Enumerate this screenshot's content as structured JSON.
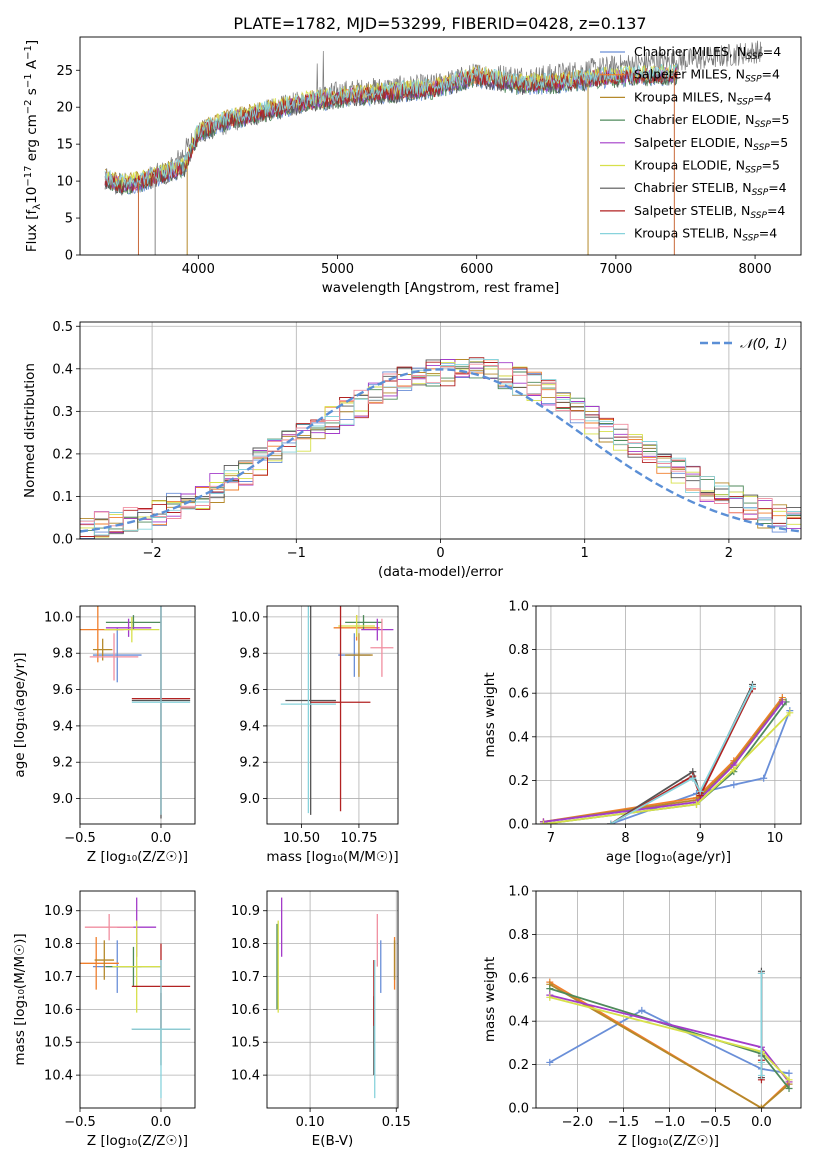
{
  "figure_title": "PLATE=1782, MJD=53299, FIBERID=0428, z=0.137",
  "colors": {
    "Chabrier MILES": "#6a8fd8",
    "Salpeter MILES": "#f07f2c",
    "Kroupa MILES": "#b5892b",
    "Chabrier ELODIE": "#4f8a5b",
    "Salpeter ELODIE": "#a33cc9",
    "Kroupa ELODIE": "#d7e04a",
    "Chabrier STELIB": "#555555",
    "Salpeter STELIB": "#b22222",
    "Kroupa STELIB": "#88d3dc",
    "pink": "#f08fa0",
    "gauss": "#5b8fd6"
  },
  "chart_data": [
    {
      "id": "spectrum",
      "type": "line",
      "title": "PLATE=1782, MJD=53299, FIBERID=0428, z=0.137",
      "xlabel": "wavelength [Angstrom, rest frame]",
      "ylabel_parts": [
        "Flux [f",
        "λ",
        "10",
        "−17",
        " erg cm",
        "−2",
        " s",
        "−1",
        " A",
        "−1",
        "]"
      ],
      "xlim": [
        3150,
        8330
      ],
      "ylim": [
        0,
        29.5
      ],
      "xticks": [
        4000,
        5000,
        6000,
        7000,
        8000
      ],
      "yticks": [
        0,
        5,
        10,
        15,
        20,
        25
      ],
      "legend_position": "top-right",
      "legend": [
        {
          "name": "Chabrier MILES",
          "sub_base": "N",
          "sub": "SSP",
          "value": "=4"
        },
        {
          "name": "Salpeter MILES",
          "sub_base": "N",
          "sub": "SSP",
          "value": "=4"
        },
        {
          "name": "Kroupa MILES",
          "sub_base": "N",
          "sub": "SSP",
          "value": "=4"
        },
        {
          "name": "Chabrier ELODIE",
          "sub_base": "N",
          "sub": "SSP",
          "value": "=5"
        },
        {
          "name": "Salpeter ELODIE",
          "sub_base": "N",
          "sub": "SSP",
          "value": "=5"
        },
        {
          "name": "Kroupa ELODIE",
          "sub_base": "N",
          "sub": "SSP",
          "value": "=5"
        },
        {
          "name": "Chabrier STELIB",
          "sub_base": "N",
          "sub": "SSP",
          "value": "=4"
        },
        {
          "name": "Salpeter STELIB",
          "sub_base": "N",
          "sub": "SSP",
          "value": "=4"
        },
        {
          "name": "Kroupa STELIB",
          "sub_base": "N",
          "sub": "SSP",
          "value": "=4"
        }
      ],
      "continuum": [
        [
          3330,
          10.2
        ],
        [
          3450,
          9.5
        ],
        [
          3600,
          10.0
        ],
        [
          3750,
          11.0
        ],
        [
          3900,
          12.0
        ],
        [
          4000,
          16.5
        ],
        [
          4200,
          18.2
        ],
        [
          4500,
          19.5
        ],
        [
          4800,
          20.8
        ],
        [
          5100,
          21.5
        ],
        [
          5400,
          22.0
        ],
        [
          5700,
          22.5
        ],
        [
          6000,
          24.2
        ],
        [
          6300,
          23.0
        ],
        [
          6600,
          23.3
        ],
        [
          6900,
          24.0
        ],
        [
          7200,
          24.3
        ],
        [
          7450,
          24.4
        ]
      ],
      "data_continuum": [
        [
          3330,
          10.2
        ],
        [
          3500,
          9.5
        ],
        [
          3800,
          11.5
        ],
        [
          4000,
          16.5
        ],
        [
          4300,
          18.5
        ],
        [
          4700,
          20.5
        ],
        [
          5000,
          22.0
        ],
        [
          5300,
          22.5
        ],
        [
          5700,
          23.0
        ],
        [
          6000,
          24.5
        ],
        [
          6400,
          24.0
        ],
        [
          6800,
          25.0
        ],
        [
          7200,
          26.0
        ],
        [
          7600,
          26.5
        ],
        [
          8000,
          27.5
        ],
        [
          8050,
          27.5
        ]
      ],
      "model_edges": [
        [
          3330,
          7440
        ],
        [
          3330,
          7440
        ],
        [
          3330,
          6800
        ],
        [
          3330,
          7440
        ],
        [
          3330,
          7440
        ],
        [
          3330,
          7440
        ],
        [
          3330,
          7440
        ],
        [
          3330,
          7440
        ],
        [
          3330,
          7440
        ]
      ],
      "drops": [
        [
          3570,
          0
        ],
        [
          3690,
          0
        ],
        [
          3920,
          0
        ],
        [
          6800,
          0
        ],
        [
          7420,
          0
        ]
      ]
    },
    {
      "id": "residuals",
      "type": "histogram",
      "xlabel": "(data-model)/error",
      "ylabel": "Normed distribution",
      "xlim": [
        -2.5,
        2.5
      ],
      "ylim": [
        0,
        0.51
      ],
      "xticks": [
        -2,
        -1,
        0,
        1,
        2
      ],
      "yticks": [
        0.0,
        0.1,
        0.2,
        0.3,
        0.4,
        0.5
      ],
      "legend": "𝒩(0, 1)",
      "legend_position": "top-right",
      "bin_width": 0.1,
      "series_base": [
        0.02,
        0.03,
        0.04,
        0.04,
        0.05,
        0.06,
        0.08,
        0.09,
        0.1,
        0.12,
        0.14,
        0.16,
        0.18,
        0.2,
        0.22,
        0.24,
        0.26,
        0.28,
        0.3,
        0.32,
        0.34,
        0.36,
        0.37,
        0.38,
        0.39,
        0.39,
        0.4,
        0.4,
        0.39,
        0.38,
        0.37,
        0.36,
        0.34,
        0.32,
        0.3,
        0.28,
        0.26,
        0.24,
        0.22,
        0.2,
        0.18,
        0.16,
        0.14,
        0.12,
        0.1,
        0.09,
        0.08,
        0.06,
        0.05,
        0.04
      ]
    },
    {
      "id": "age-vs-Z",
      "type": "errorbar",
      "xlabel": "Z [log₁₀(Z/Z☉)]",
      "ylabel": "age  [log₁₀(age/yr)]",
      "xlim": [
        -0.5,
        0.21
      ],
      "ylim": [
        8.86,
        10.06
      ],
      "xticks": [
        -0.5,
        0.0
      ],
      "yticks": [
        9.0,
        9.2,
        9.4,
        9.6,
        9.8,
        10.0
      ],
      "points": [
        {
          "s": "Chabrier MILES",
          "x": -0.27,
          "xerr": 0.15,
          "y": 9.79,
          "yerr": 0.15
        },
        {
          "s": "Salpeter MILES",
          "x": -0.39,
          "xerr": 0.16,
          "y": 9.93,
          "yerr": 0.18
        },
        {
          "s": "Kroupa MILES",
          "x": -0.36,
          "xerr": 0.06,
          "y": 9.82,
          "yerr": 0.06
        },
        {
          "s": "Chabrier ELODIE",
          "x": -0.17,
          "xerr": 0.17,
          "y": 9.97,
          "yerr": 0.04
        },
        {
          "s": "Salpeter ELODIE",
          "x": -0.2,
          "xerr": 0.14,
          "y": 9.94,
          "yerr": 0.05
        },
        {
          "s": "Kroupa ELODIE",
          "x": -0.18,
          "xerr": 0.17,
          "y": 9.93,
          "yerr": 0.07
        },
        {
          "s": "Chabrier STELIB",
          "x": 0.0,
          "xerr": 0.18,
          "y": 9.54,
          "yerr": 0.65
        },
        {
          "s": "Salpeter STELIB",
          "x": 0.0,
          "xerr": 0.18,
          "y": 9.55,
          "yerr": 0.64
        },
        {
          "s": "Kroupa STELIB",
          "x": 0.0,
          "xerr": 0.18,
          "y": 9.53,
          "yerr": 0.62
        },
        {
          "s": "pink",
          "x": -0.29,
          "xerr": 0.15,
          "y": 9.78,
          "yerr": 0.13
        }
      ]
    },
    {
      "id": "age-vs-mass",
      "type": "errorbar",
      "xlabel": "mass [log₁₀(M/M☉)]",
      "ylabel": "",
      "xlim": [
        10.35,
        10.92
      ],
      "ylim": [
        8.86,
        10.06
      ],
      "xticks": [
        10.5,
        10.75
      ],
      "yticks": [
        9.0,
        9.2,
        9.4,
        9.6,
        9.8,
        10.0
      ],
      "points": [
        {
          "s": "Chabrier MILES",
          "x": 10.73,
          "xerr": 0.07,
          "y": 9.79,
          "yerr": 0.12
        },
        {
          "s": "Salpeter MILES",
          "x": 10.74,
          "xerr": 0.1,
          "y": 9.94,
          "yerr": 0.07
        },
        {
          "s": "Kroupa MILES",
          "x": 10.75,
          "xerr": 0.06,
          "y": 9.79,
          "yerr": 0.12
        },
        {
          "s": "Chabrier ELODIE",
          "x": 10.77,
          "xerr": 0.08,
          "y": 9.97,
          "yerr": 0.04
        },
        {
          "s": "Salpeter ELODIE",
          "x": 10.83,
          "xerr": 0.07,
          "y": 9.93,
          "yerr": 0.06
        },
        {
          "s": "Kroupa ELODIE",
          "x": 10.74,
          "xerr": 0.08,
          "y": 9.95,
          "yerr": 0.06
        },
        {
          "s": "Chabrier STELIB",
          "x": 10.54,
          "xerr": 0.11,
          "y": 9.54,
          "yerr": 0.63
        },
        {
          "s": "Salpeter STELIB",
          "x": 10.67,
          "xerr": 0.13,
          "y": 9.53,
          "yerr": 0.6
        },
        {
          "s": "Kroupa STELIB",
          "x": 10.53,
          "xerr": 0.12,
          "y": 9.52,
          "yerr": 0.6
        },
        {
          "s": "pink",
          "x": 10.85,
          "xerr": 0.05,
          "y": 9.83,
          "yerr": 0.16
        }
      ]
    },
    {
      "id": "weight-vs-age",
      "type": "line",
      "xlabel": "age  [log₁₀(age/yr)]",
      "ylabel": "mass weight",
      "xlim": [
        6.8,
        10.35
      ],
      "ylim": [
        0,
        1
      ],
      "xticks": [
        7,
        8,
        9,
        10
      ],
      "yticks": [
        0.0,
        0.2,
        0.4,
        0.6,
        0.8,
        1.0
      ],
      "series": [
        {
          "s": "Chabrier MILES",
          "x": [
            7.8,
            8.95,
            9.45,
            9.85,
            10.2
          ],
          "y": [
            0.0,
            0.14,
            0.18,
            0.21,
            0.52
          ]
        },
        {
          "s": "Salpeter MILES",
          "x": [
            6.9,
            8.95,
            9.45,
            10.1
          ],
          "y": [
            0.01,
            0.12,
            0.29,
            0.58
          ]
        },
        {
          "s": "Kroupa MILES",
          "x": [
            6.9,
            8.95,
            9.45,
            10.1
          ],
          "y": [
            0.01,
            0.11,
            0.28,
            0.57
          ]
        },
        {
          "s": "Chabrier ELODIE",
          "x": [
            6.9,
            8.95,
            9.45,
            10.15
          ],
          "y": [
            0.0,
            0.09,
            0.24,
            0.56
          ]
        },
        {
          "s": "Salpeter ELODIE",
          "x": [
            6.9,
            8.95,
            9.45,
            10.1
          ],
          "y": [
            0.01,
            0.1,
            0.27,
            0.56
          ]
        },
        {
          "s": "Kroupa ELODIE",
          "x": [
            6.9,
            8.95,
            9.45,
            10.2
          ],
          "y": [
            0.0,
            0.09,
            0.25,
            0.51
          ]
        },
        {
          "s": "Chabrier STELIB",
          "x": [
            7.8,
            8.9,
            9.0,
            9.7
          ],
          "y": [
            0.0,
            0.24,
            0.14,
            0.64
          ]
        },
        {
          "s": "Salpeter STELIB",
          "x": [
            7.8,
            8.9,
            9.0,
            9.7
          ],
          "y": [
            0.0,
            0.22,
            0.13,
            0.62
          ]
        },
        {
          "s": "Kroupa STELIB",
          "x": [
            7.8,
            8.9,
            9.0,
            9.7
          ],
          "y": [
            0.0,
            0.21,
            0.15,
            0.63
          ]
        }
      ]
    },
    {
      "id": "mass-vs-Z",
      "type": "errorbar",
      "xlabel": "Z [log₁₀(Z/Z☉)]",
      "ylabel": "mass [log₁₀(M/M☉)]",
      "xlim": [
        -0.5,
        0.21
      ],
      "ylim": [
        10.3,
        10.96
      ],
      "xticks": [
        -0.5,
        0.0
      ],
      "yticks": [
        10.4,
        10.5,
        10.6,
        10.7,
        10.8,
        10.9
      ],
      "points": [
        {
          "s": "Chabrier MILES",
          "x": -0.27,
          "xerr": 0.15,
          "y": 10.73,
          "yerr": 0.08
        },
        {
          "s": "Salpeter MILES",
          "x": -0.4,
          "xerr": 0.14,
          "y": 10.74,
          "yerr": 0.08
        },
        {
          "s": "Kroupa MILES",
          "x": -0.35,
          "xerr": 0.06,
          "y": 10.75,
          "yerr": 0.06
        },
        {
          "s": "Chabrier ELODIE",
          "x": -0.17,
          "xerr": 0.17,
          "y": 10.73,
          "yerr": 0.06
        },
        {
          "s": "Salpeter ELODIE",
          "x": -0.15,
          "xerr": 0.12,
          "y": 10.85,
          "yerr": 0.09
        },
        {
          "s": "Kroupa ELODIE",
          "x": -0.15,
          "xerr": 0.15,
          "y": 10.73,
          "yerr": 0.14
        },
        {
          "s": "Chabrier STELIB",
          "x": 0.0,
          "xerr": 0.18,
          "y": 10.54,
          "yerr": 0.11
        },
        {
          "s": "Salpeter STELIB",
          "x": 0.0,
          "xerr": 0.18,
          "y": 10.67,
          "yerr": 0.13
        },
        {
          "s": "Kroupa STELIB",
          "x": 0.0,
          "xerr": 0.18,
          "y": 10.54,
          "yerr": 0.21
        },
        {
          "s": "pink",
          "x": -0.32,
          "xerr": 0.15,
          "y": 10.85,
          "yerr": 0.04
        }
      ]
    },
    {
      "id": "mass-vs-EBV",
      "type": "errorbar",
      "xlabel": "E(B-V)",
      "ylabel": "",
      "xlim": [
        0.075,
        0.151
      ],
      "ylim": [
        10.3,
        10.96
      ],
      "xticks": [
        0.1,
        0.15
      ],
      "yticks": [
        10.4,
        10.5,
        10.6,
        10.7,
        10.8,
        10.9
      ],
      "points": [
        {
          "s": "Chabrier MILES",
          "x": 0.141,
          "xerr": 0,
          "y": 10.73,
          "yerr": 0.08
        },
        {
          "s": "Salpeter MILES",
          "x": 0.149,
          "xerr": 0,
          "y": 10.74,
          "yerr": 0.08
        },
        {
          "s": "Kroupa MILES",
          "x": 0.149,
          "xerr": 0,
          "y": 10.75,
          "yerr": 0.06
        },
        {
          "s": "Chabrier ELODIE",
          "x": 0.0808,
          "xerr": 0,
          "y": 10.73,
          "yerr": 0.13
        },
        {
          "s": "Salpeter ELODIE",
          "x": 0.0835,
          "xerr": 0,
          "y": 10.85,
          "yerr": 0.09
        },
        {
          "s": "Kroupa ELODIE",
          "x": 0.0815,
          "xerr": 0,
          "y": 10.73,
          "yerr": 0.14
        },
        {
          "s": "Chabrier STELIB",
          "x": 0.137,
          "xerr": 0,
          "y": 10.52,
          "yerr": 0.12
        },
        {
          "s": "Salpeter STELIB",
          "x": 0.137,
          "xerr": 0,
          "y": 10.65,
          "yerr": 0.1
        },
        {
          "s": "Kroupa STELIB",
          "x": 0.1375,
          "xerr": 0,
          "y": 10.54,
          "yerr": 0.21
        },
        {
          "s": "pink",
          "x": 0.139,
          "xerr": 0,
          "y": 10.81,
          "yerr": 0.08
        }
      ]
    },
    {
      "id": "weight-vs-Z",
      "type": "line",
      "xlabel": "Z [log₁₀(Z/Z☉)]",
      "ylabel": "mass weight",
      "xlim": [
        -2.45,
        0.43
      ],
      "ylim": [
        0,
        1
      ],
      "xticks": [
        -2.0,
        -1.5,
        -1.0,
        -0.5,
        0.0
      ],
      "yticks": [
        0.0,
        0.2,
        0.4,
        0.6,
        0.8,
        1.0
      ],
      "series": [
        {
          "s": "Chabrier MILES",
          "x": [
            -2.3,
            -1.3,
            0.0,
            0.3
          ],
          "y": [
            0.21,
            0.45,
            0.18,
            0.16
          ]
        },
        {
          "s": "Salpeter MILES",
          "x": [
            -2.3,
            0.0,
            0.3
          ],
          "y": [
            0.58,
            0.0,
            0.12
          ]
        },
        {
          "s": "Kroupa MILES",
          "x": [
            -2.3,
            0.0,
            0.3
          ],
          "y": [
            0.57,
            0.0,
            0.11
          ]
        },
        {
          "s": "Chabrier ELODIE",
          "x": [
            -2.3,
            0.0,
            0.3
          ],
          "y": [
            0.55,
            0.25,
            0.09
          ]
        },
        {
          "s": "Salpeter ELODIE",
          "x": [
            -2.3,
            0.0,
            0.3
          ],
          "y": [
            0.52,
            0.28,
            0.12
          ]
        },
        {
          "s": "Kroupa ELODIE",
          "x": [
            -2.3,
            0.0,
            0.3
          ],
          "y": [
            0.51,
            0.26,
            0.13
          ]
        },
        {
          "s": "Chabrier STELIB",
          "x": [
            0.0,
            0.0,
            0.0
          ],
          "y": [
            0.63,
            0.24,
            0.14
          ]
        },
        {
          "s": "Salpeter STELIB",
          "x": [
            0.0,
            0.0,
            0.0
          ],
          "y": [
            0.62,
            0.22,
            0.13
          ]
        },
        {
          "s": "Kroupa STELIB",
          "x": [
            0.0,
            0.0,
            0.0
          ],
          "y": [
            0.62,
            0.21,
            0.15
          ]
        }
      ]
    }
  ]
}
